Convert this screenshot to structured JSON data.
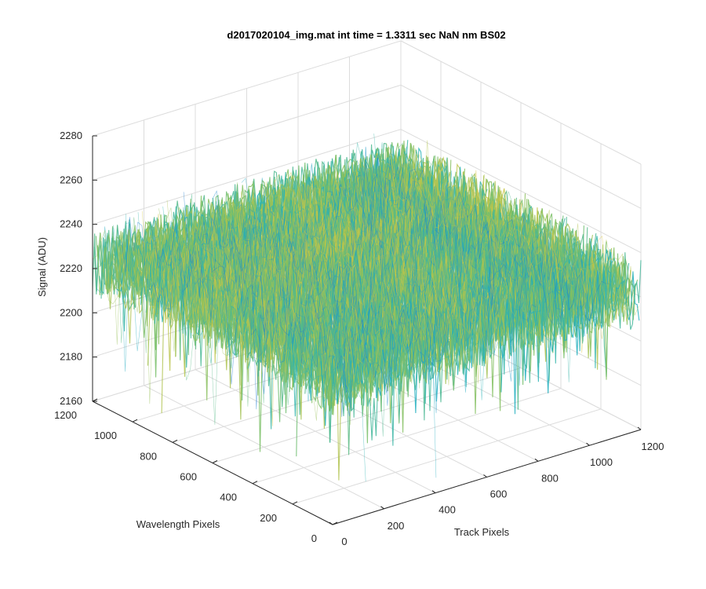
{
  "chart_data": {
    "type": "surface",
    "title": "d2017020104_img.mat int time = 1.3311 sec  NaN nm BS02",
    "xlabel": "Track Pixels",
    "ylabel": "Wavelength Pixels",
    "zlabel": "Signal (ADU)",
    "xlim": [
      0,
      1200
    ],
    "ylim": [
      0,
      1200
    ],
    "zlim": [
      2160,
      2280
    ],
    "x_ticks": [
      "0",
      "200",
      "400",
      "600",
      "800",
      "1000",
      "1200"
    ],
    "y_ticks": [
      "0",
      "200",
      "400",
      "600",
      "800",
      "1000",
      "1200"
    ],
    "z_ticks": [
      "2160",
      "2180",
      "2200",
      "2220",
      "2240",
      "2260",
      "2280"
    ],
    "grid": true,
    "colormap": "parula",
    "surface_summary": {
      "approx_mean_signal": 2225,
      "approx_min_signal": 2170,
      "approx_max_signal": 2270
    },
    "colors": {
      "low": "#1f78d4",
      "mid": "#21b3bc",
      "high": "#d5c33f",
      "grid": "#dcdcdc",
      "axis": "#262626"
    }
  }
}
